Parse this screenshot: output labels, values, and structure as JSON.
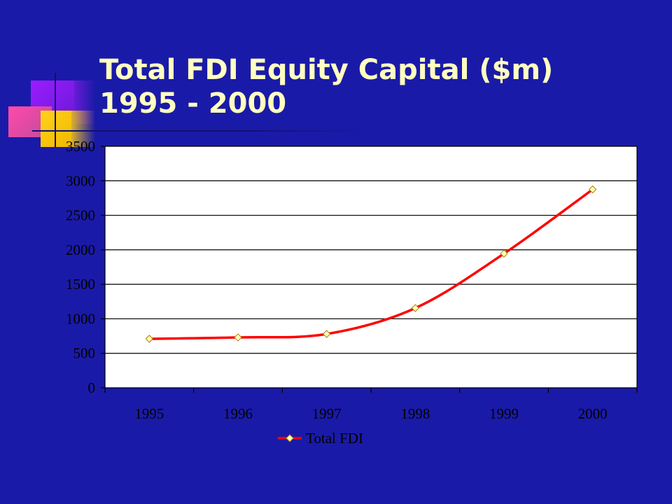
{
  "slide": {
    "title": "Total FDI Equity Capital ($m)\n1995 - 2000"
  },
  "colors": {
    "background": "#1a1aa8",
    "title": "#ffffc0",
    "plot_background": "#ffffff",
    "series_line": "#ff0000",
    "marker_fill": "#ffffc0"
  },
  "chart_data": {
    "type": "line",
    "title": "",
    "xlabel": "",
    "ylabel": "",
    "categories": [
      "1995",
      "1996",
      "1997",
      "1998",
      "1999",
      "2000"
    ],
    "series": [
      {
        "name": "Total FDI",
        "values": [
          710,
          730,
          780,
          1155,
          1945,
          2875
        ]
      }
    ],
    "ylim": [
      0,
      3500
    ],
    "yticks": [
      "0",
      "500",
      "1000",
      "1500",
      "2000",
      "2500",
      "3000",
      "3500"
    ],
    "grid": true,
    "legend_position": "bottom"
  }
}
